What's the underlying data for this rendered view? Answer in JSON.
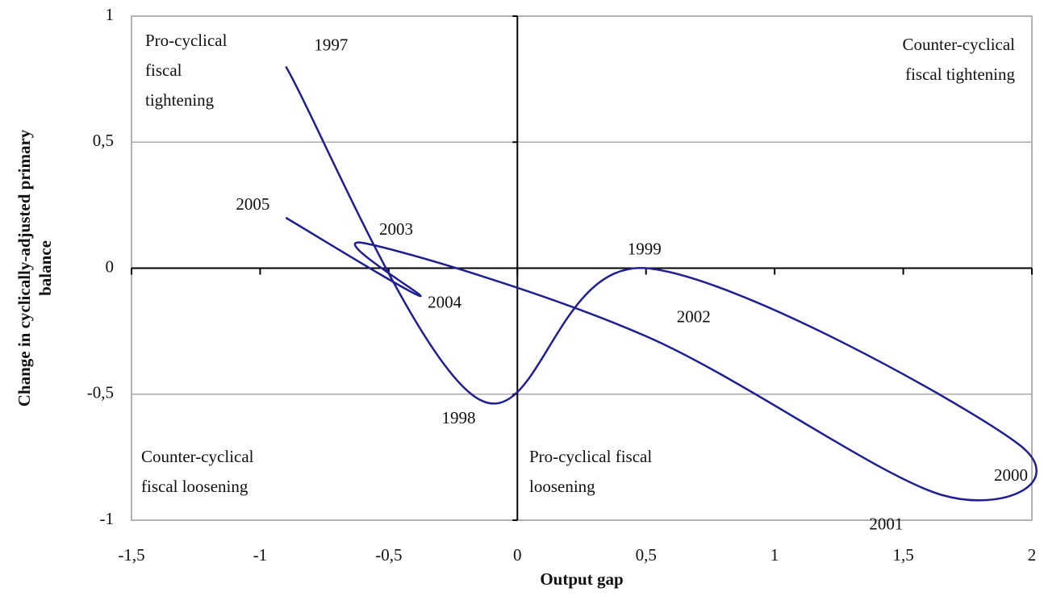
{
  "chart_data": {
    "type": "line",
    "xlabel": "Output gap",
    "ylabel": "Change in cyclically-adjusted primary balance",
    "x": [
      -0.9,
      -0.15,
      0.5,
      1.95,
      1.65,
      0.5,
      -0.6,
      -0.38,
      -0.9
    ],
    "series": [
      {
        "name": null,
        "color": "#1f1f8f",
        "values": [
          0.8,
          -0.52,
          0.0,
          -0.7,
          -0.9,
          -0.27,
          0.1,
          -0.11,
          0.2
        ],
        "point_labels": [
          "1997",
          "1998",
          "1999",
          "2000",
          "2001",
          "2002",
          "2003",
          "2004",
          "2005"
        ]
      }
    ],
    "xlim": [
      -1.5,
      2
    ],
    "xticks": [
      {
        "value": -1.5,
        "label": "-1,5"
      },
      -1,
      {
        "value": -0.5,
        "label": "-0,5"
      },
      0,
      {
        "value": 0.5,
        "label": "0,5"
      },
      1,
      {
        "value": 1.5,
        "label": "1,5"
      },
      2
    ],
    "ylim": [
      -1,
      1
    ],
    "yticks": [
      -1,
      {
        "value": -0.5,
        "label": "-0,5"
      },
      0,
      {
        "value": 0.5,
        "label": "0,5"
      },
      1
    ],
    "grid": true,
    "annotations": [
      [
        "Pro-cyclical",
        "fiscal",
        "tightening"
      ],
      [
        "Counter-cyclical",
        "fiscal tightening"
      ],
      [
        "Counter-cyclical",
        "fiscal loosening"
      ],
      [
        "Pro-cyclical fiscal",
        "loosening"
      ]
    ]
  }
}
